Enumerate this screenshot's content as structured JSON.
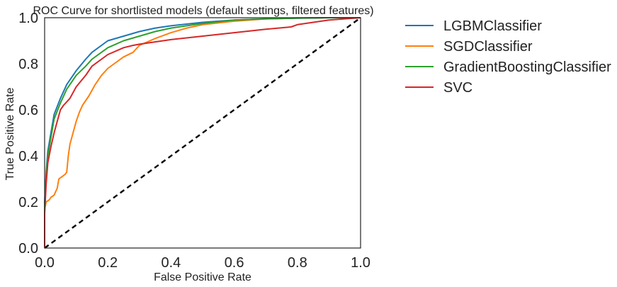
{
  "chart_data": {
    "type": "line",
    "title": "ROC Curve for shortlisted models (default settings, filtered features)",
    "xlabel": "False Positive Rate",
    "ylabel": "True Positive Rate",
    "xlim": [
      0.0,
      1.0
    ],
    "ylim": [
      0.0,
      1.0
    ],
    "xticks": [
      "0.0",
      "0.2",
      "0.4",
      "0.6",
      "0.8",
      "1.0"
    ],
    "yticks": [
      "0.0",
      "0.2",
      "0.4",
      "0.6",
      "0.8",
      "1.0"
    ],
    "grid": false,
    "legend_position": "outside right",
    "series": [
      {
        "name": "LGBMClassifier",
        "color": "#1f77b4",
        "x": [
          0.0,
          0.0,
          0.005,
          0.01,
          0.02,
          0.03,
          0.05,
          0.07,
          0.1,
          0.13,
          0.15,
          0.2,
          0.25,
          0.3,
          0.35,
          0.4,
          0.5,
          0.6,
          0.7,
          0.8,
          0.9,
          1.0
        ],
        "y": [
          0.0,
          0.2,
          0.33,
          0.42,
          0.5,
          0.58,
          0.65,
          0.71,
          0.77,
          0.82,
          0.85,
          0.9,
          0.92,
          0.94,
          0.955,
          0.965,
          0.98,
          0.99,
          0.995,
          0.998,
          1.0,
          1.0
        ]
      },
      {
        "name": "SGDClassifier",
        "color": "#ff7f0e",
        "x": [
          0.0,
          0.0,
          0.005,
          0.015,
          0.02,
          0.03,
          0.04,
          0.045,
          0.055,
          0.065,
          0.07,
          0.075,
          0.08,
          0.09,
          0.1,
          0.11,
          0.12,
          0.14,
          0.16,
          0.18,
          0.2,
          0.22,
          0.25,
          0.28,
          0.3,
          0.35,
          0.4,
          0.45,
          0.5,
          0.6,
          0.7,
          0.8,
          0.9,
          1.0
        ],
        "y": [
          0.0,
          0.17,
          0.2,
          0.21,
          0.22,
          0.23,
          0.26,
          0.3,
          0.31,
          0.32,
          0.33,
          0.4,
          0.45,
          0.5,
          0.55,
          0.59,
          0.62,
          0.66,
          0.71,
          0.75,
          0.78,
          0.8,
          0.83,
          0.85,
          0.88,
          0.91,
          0.935,
          0.955,
          0.97,
          0.985,
          0.995,
          0.999,
          1.0,
          1.0
        ]
      },
      {
        "name": "GradientBoostingClassifier",
        "color": "#2ca02c",
        "x": [
          0.0,
          0.0,
          0.005,
          0.01,
          0.02,
          0.03,
          0.05,
          0.07,
          0.1,
          0.13,
          0.15,
          0.2,
          0.25,
          0.3,
          0.35,
          0.4,
          0.5,
          0.6,
          0.7,
          0.8,
          0.9,
          1.0
        ],
        "y": [
          0.0,
          0.18,
          0.31,
          0.4,
          0.48,
          0.56,
          0.63,
          0.69,
          0.75,
          0.79,
          0.82,
          0.87,
          0.9,
          0.92,
          0.94,
          0.955,
          0.975,
          0.99,
          0.995,
          0.998,
          1.0,
          1.0
        ]
      },
      {
        "name": "SVC",
        "color": "#d62728",
        "x": [
          0.0,
          0.0,
          0.005,
          0.01,
          0.02,
          0.03,
          0.04,
          0.05,
          0.06,
          0.08,
          0.1,
          0.13,
          0.15,
          0.2,
          0.25,
          0.28,
          0.3,
          0.35,
          0.4,
          0.5,
          0.6,
          0.7,
          0.78,
          0.8,
          0.85,
          0.9,
          0.95,
          1.0
        ],
        "y": [
          0.0,
          0.15,
          0.28,
          0.37,
          0.44,
          0.5,
          0.55,
          0.6,
          0.62,
          0.65,
          0.7,
          0.75,
          0.79,
          0.84,
          0.87,
          0.88,
          0.885,
          0.895,
          0.905,
          0.92,
          0.935,
          0.95,
          0.96,
          0.97,
          0.98,
          0.99,
          0.995,
          1.0
        ]
      }
    ],
    "reference_line": {
      "x": [
        0.0,
        1.0
      ],
      "y": [
        0.0,
        1.0
      ],
      "color": "#000000",
      "style": "dashed"
    }
  }
}
